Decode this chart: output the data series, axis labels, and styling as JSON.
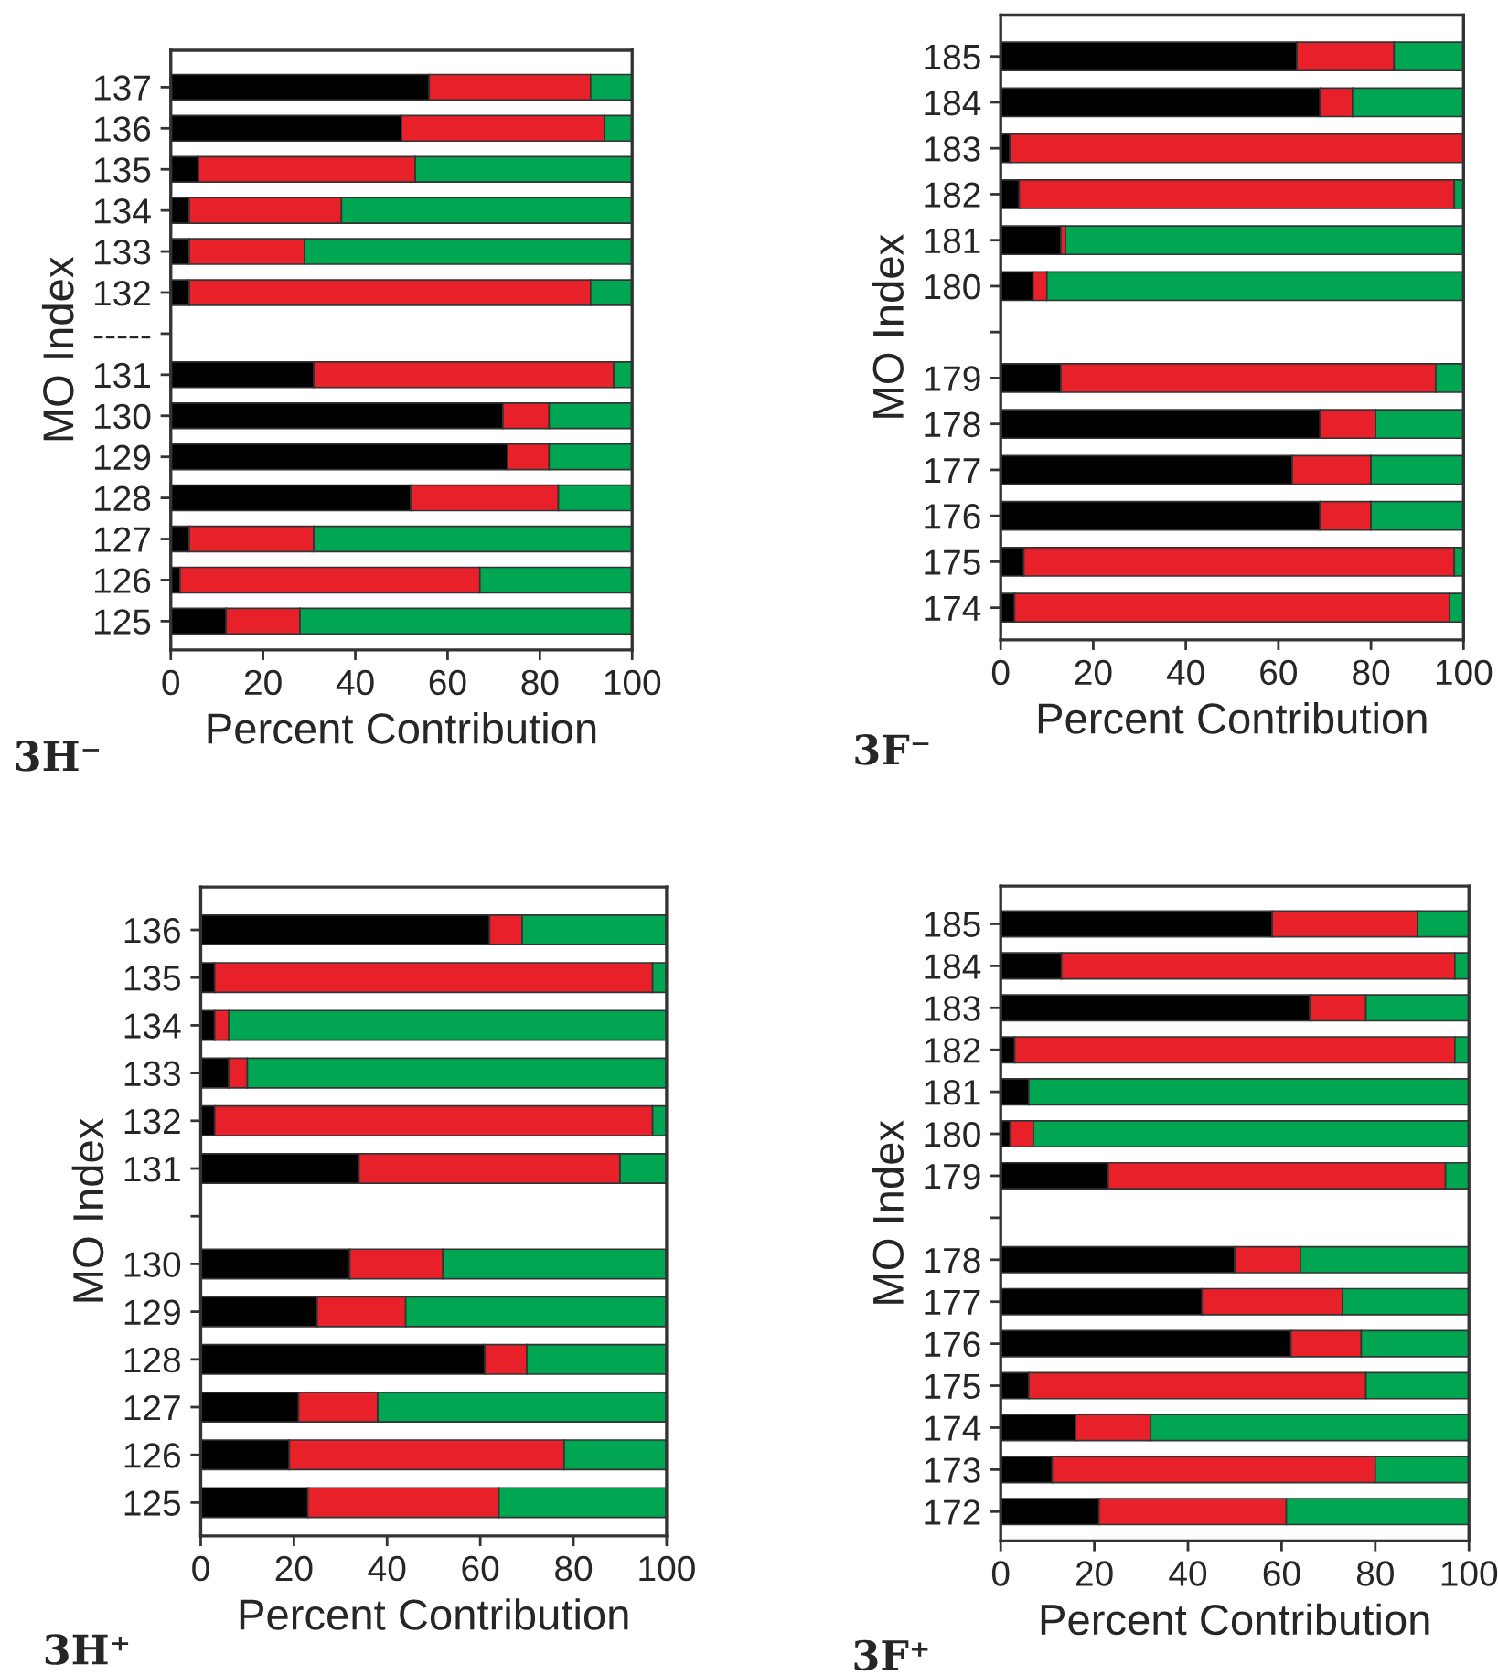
{
  "chart_data": [
    {
      "type": "bar",
      "orientation": "horizontal",
      "stacked": true,
      "title": "3H⁻",
      "xlabel": "Percent Contribution",
      "ylabel": "MO Index",
      "categories": [
        "137",
        "136",
        "135",
        "134",
        "133",
        "132",
        "-----",
        "131",
        "130",
        "129",
        "128",
        "127",
        "126",
        "125"
      ],
      "series": [
        {
          "color": "#000000",
          "values": [
            56,
            50,
            6,
            4,
            4,
            4,
            null,
            31,
            72,
            73,
            52,
            4,
            2,
            12
          ]
        },
        {
          "color": "#e8202a",
          "values": [
            35,
            44,
            47,
            33,
            25,
            87,
            null,
            65,
            10,
            9,
            32,
            27,
            65,
            16
          ]
        },
        {
          "color": "#00a651",
          "values": [
            9,
            6,
            47,
            63,
            71,
            9,
            null,
            4,
            18,
            18,
            16,
            69,
            33,
            72
          ]
        }
      ],
      "xlim": [
        0,
        100
      ],
      "xticks": [
        0,
        20,
        40,
        60,
        80,
        100
      ]
    },
    {
      "type": "bar",
      "orientation": "horizontal",
      "stacked": true,
      "title": "3F⁻",
      "xlabel": "Percent Contribution",
      "ylabel": "MO Index",
      "categories": [
        "185",
        "184",
        "183",
        "182",
        "181",
        "180",
        null,
        "179",
        "178",
        "177",
        "176",
        "175",
        "174"
      ],
      "series": [
        {
          "color": "#000000",
          "values": [
            64,
            69,
            2,
            4,
            13,
            7,
            null,
            13,
            69,
            63,
            69,
            5,
            3
          ]
        },
        {
          "color": "#e8202a",
          "values": [
            21,
            7,
            98,
            94,
            1,
            3,
            null,
            81,
            12,
            17,
            11,
            93,
            94
          ]
        },
        {
          "color": "#00a651",
          "values": [
            15,
            24,
            0,
            2,
            86,
            90,
            null,
            6,
            19,
            20,
            20,
            2,
            3
          ]
        }
      ],
      "xlim": [
        0,
        100
      ],
      "xticks": [
        0,
        20,
        40,
        60,
        80,
        100
      ]
    },
    {
      "type": "bar",
      "orientation": "horizontal",
      "stacked": true,
      "title": "3H⁺",
      "xlabel": "Percent Contribution",
      "ylabel": "MO Index",
      "categories": [
        "136",
        "135",
        "134",
        "133",
        "132",
        "131",
        null,
        "130",
        "129",
        "128",
        "127",
        "126",
        "125"
      ],
      "series": [
        {
          "color": "#000000",
          "values": [
            62,
            3,
            3,
            6,
            3,
            34,
            null,
            32,
            25,
            61,
            21,
            19,
            23
          ]
        },
        {
          "color": "#e8202a",
          "values": [
            7,
            94,
            3,
            4,
            94,
            56,
            null,
            20,
            19,
            9,
            17,
            59,
            41
          ]
        },
        {
          "color": "#00a651",
          "values": [
            31,
            3,
            94,
            90,
            3,
            10,
            null,
            48,
            56,
            30,
            62,
            22,
            36
          ]
        }
      ],
      "xlim": [
        0,
        100
      ],
      "xticks": [
        0,
        20,
        40,
        60,
        80,
        100
      ]
    },
    {
      "type": "bar",
      "orientation": "horizontal",
      "stacked": true,
      "title": "3F⁺",
      "xlabel": "Percent Contribution",
      "ylabel": "MO Index",
      "categories": [
        "185",
        "184",
        "183",
        "182",
        "181",
        "180",
        "179",
        null,
        "178",
        "177",
        "176",
        "175",
        "174",
        "173",
        "172"
      ],
      "series": [
        {
          "color": "#000000",
          "values": [
            58,
            13,
            66,
            3,
            6,
            2,
            23,
            null,
            50,
            43,
            62,
            6,
            16,
            11,
            21
          ]
        },
        {
          "color": "#e8202a",
          "values": [
            31,
            84,
            12,
            94,
            0,
            5,
            72,
            null,
            14,
            30,
            15,
            72,
            16,
            69,
            40
          ]
        },
        {
          "color": "#00a651",
          "values": [
            11,
            3,
            22,
            3,
            94,
            93,
            5,
            null,
            36,
            27,
            23,
            22,
            68,
            20,
            39
          ]
        }
      ],
      "xlim": [
        0,
        100
      ],
      "xticks": [
        0,
        20,
        40,
        60,
        80,
        100
      ]
    }
  ]
}
